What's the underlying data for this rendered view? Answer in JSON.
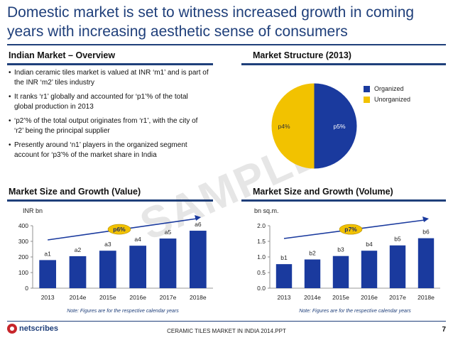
{
  "title": "Domestic market is set to witness increased growth in coming years with increasing aesthetic sense of consumers",
  "sections": {
    "overview": "Indian Market – Overview",
    "structure": "Market Structure (2013)",
    "value": "Market Size and Growth (Value)",
    "volume": "Market Size and Growth (Volume)"
  },
  "bullets": [
    "Indian ceramic tiles market is valued at INR ‘m1’ and is part of the INR ‘m2’ tiles industry",
    "It ranks ‘r1’ globally and accounted for ‘p1’% of the total global production in 2013",
    "‘p2’% of the total output originates from ‘r1’, with the city of ‘r2’ being the principal supplier",
    "Presently around ‘n1’ players in the organized segment account for ‘p3’% of the market share in India"
  ],
  "watermark": "SAMPLE",
  "footer": {
    "logo": "netscribes",
    "text": "CERAMIC TILES MARKET IN INDIA 2014.PPT",
    "page": "7"
  },
  "colors": {
    "organized": "#1a3a9e",
    "unorganized": "#f2c200",
    "bar": "#1a3a9e",
    "accent": "#1f3f7a",
    "cagr_fill": "#f2c200",
    "arrow": "#1a3a9e"
  },
  "chart_data": [
    {
      "type": "pie",
      "title": "Market Structure (2013)",
      "labels": [
        "Organized",
        "Unorganized"
      ],
      "values": [
        50,
        50
      ],
      "data_labels": [
        "p5%",
        "p4%"
      ]
    },
    {
      "type": "bar",
      "title": "Market Size and Growth (Value)",
      "unit": "INR bn",
      "categories": [
        "2013",
        "2014e",
        "2015e",
        "2016e",
        "2017e",
        "2018e"
      ],
      "values": [
        180,
        205,
        240,
        272,
        318,
        368
      ],
      "data_labels": [
        "a1",
        "a2",
        "a3",
        "a4",
        "a5",
        "a6"
      ],
      "ylim": [
        0,
        400
      ],
      "yticks": [
        "0",
        "100",
        "200",
        "300",
        "400"
      ],
      "cagr": "p6%",
      "note": "Note: Figures are for the respective calendar years"
    },
    {
      "type": "bar",
      "title": "Market Size and Growth (Volume)",
      "unit": "bn sq.m.",
      "categories": [
        "2013",
        "2014e",
        "2015e",
        "2016e",
        "2017e",
        "2018e"
      ],
      "values": [
        0.77,
        0.92,
        1.03,
        1.2,
        1.37,
        1.6
      ],
      "data_labels": [
        "b1",
        "b2",
        "b3",
        "b4",
        "b5",
        "b6"
      ],
      "ylim": [
        0,
        2.0
      ],
      "yticks": [
        "0.0",
        "0.5",
        "1.0",
        "1.5",
        "2.0"
      ],
      "cagr": "p7%",
      "note": "Note: Figures are for the respective calendar years"
    }
  ]
}
